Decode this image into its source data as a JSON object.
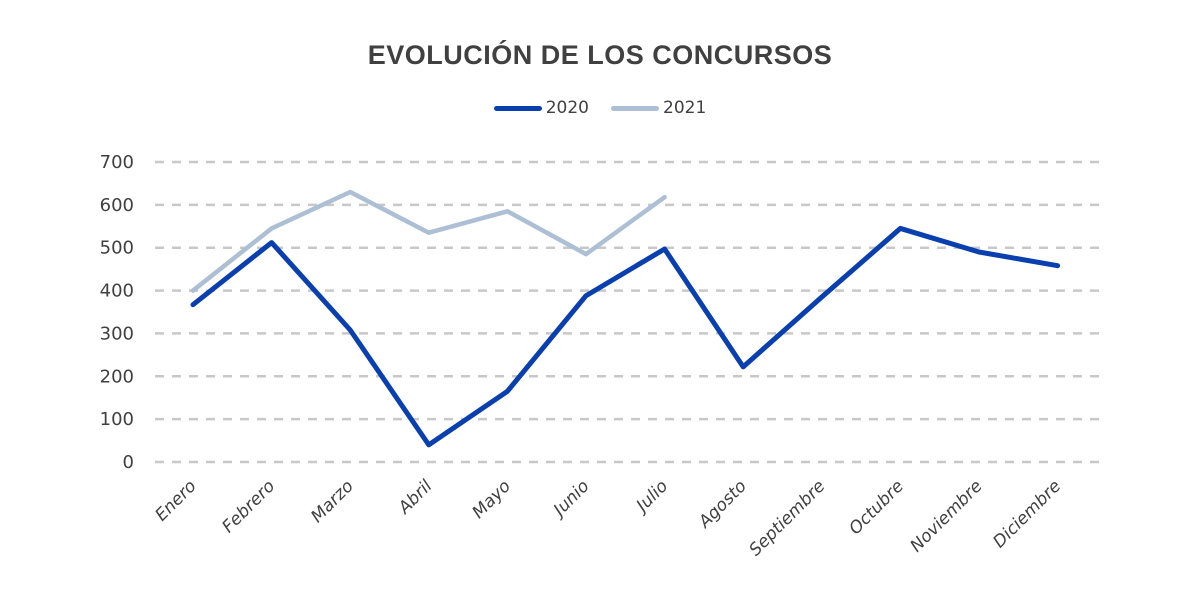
{
  "chart_data": {
    "type": "line",
    "title": "EVOLUCIÓN DE LOS CONCURSOS",
    "xlabel": "",
    "ylabel": "",
    "categories": [
      "Enero",
      "Febrero",
      "Marzo",
      "Abril",
      "Mayo",
      "Junio",
      "Julio",
      "Agosto",
      "Septiembre",
      "Octubre",
      "Noviembre",
      "Diciembre"
    ],
    "yticks": [
      0,
      100,
      200,
      300,
      400,
      500,
      600,
      700
    ],
    "ylim": [
      0,
      700
    ],
    "grid": true,
    "legend_position": "top-center",
    "series": [
      {
        "name": "2020",
        "color": "#0a3fb0",
        "values": [
          367,
          512,
          308,
          40,
          165,
          388,
          497,
          222,
          385,
          545,
          490,
          458
        ]
      },
      {
        "name": "2021",
        "color": "#adbfd4",
        "values": [
          400,
          545,
          630,
          535,
          585,
          485,
          618,
          null,
          null,
          null,
          null,
          null
        ]
      }
    ]
  }
}
